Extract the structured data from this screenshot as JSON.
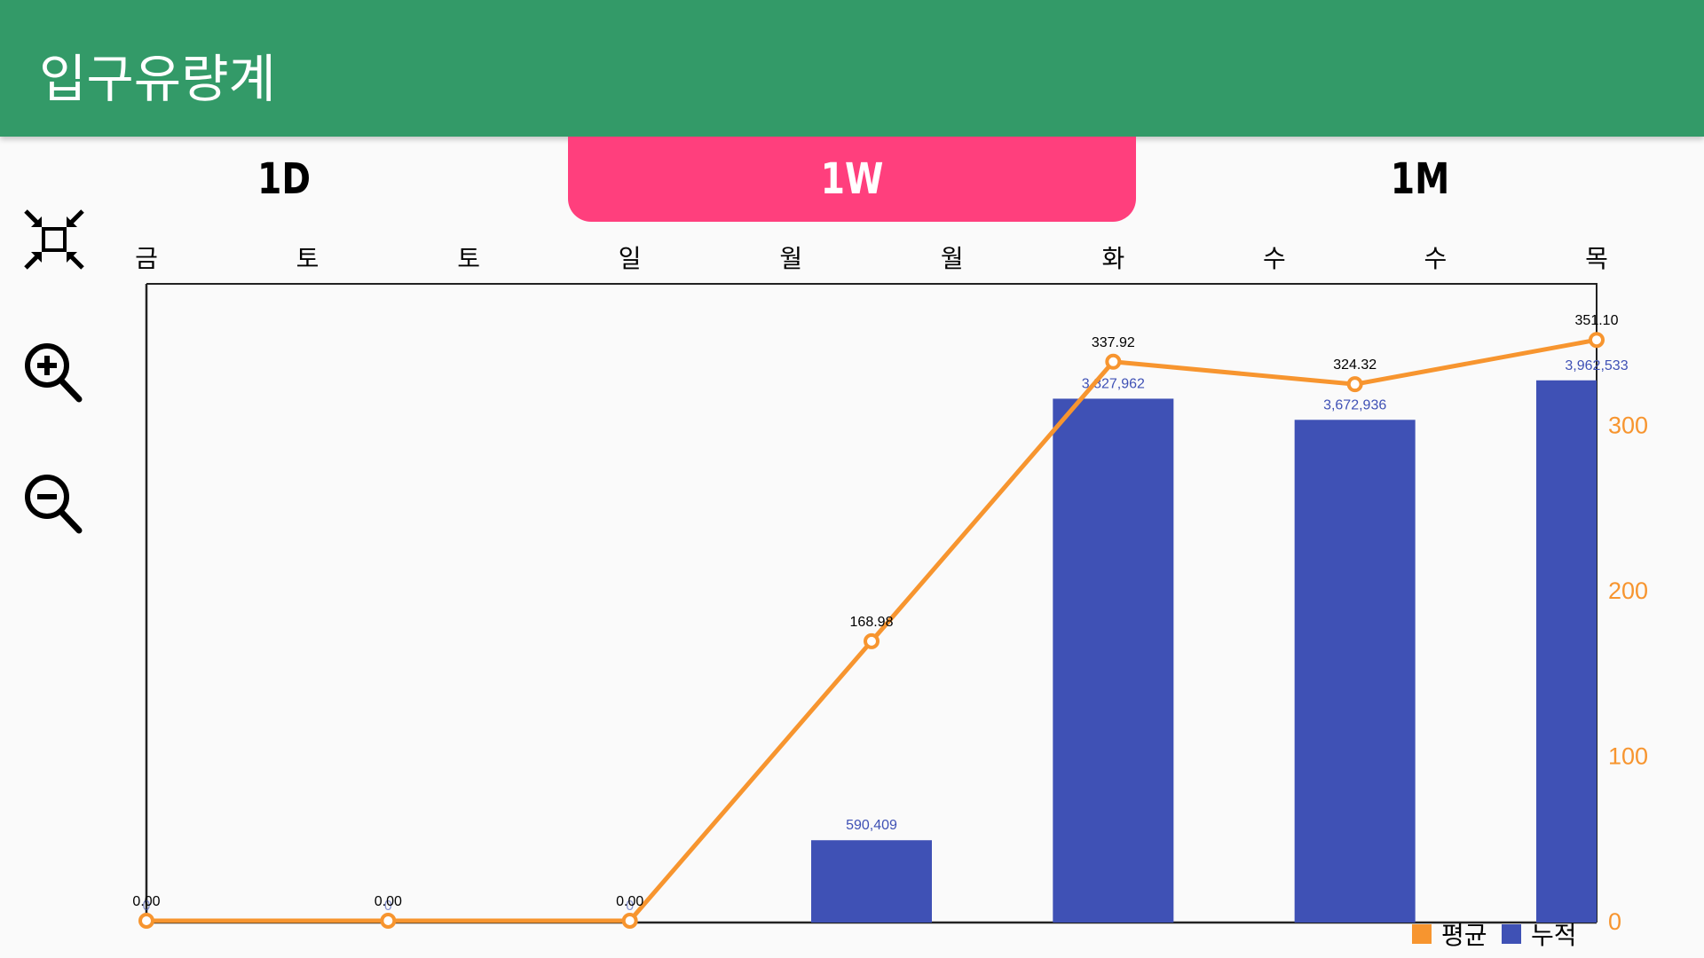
{
  "app": {
    "title": "입구유량계"
  },
  "tabs": [
    {
      "label": "1D",
      "selected": false
    },
    {
      "label": "1W",
      "selected": true
    },
    {
      "label": "1M",
      "selected": false
    }
  ],
  "colors": {
    "header": "#339a68",
    "tab_active": "#ff3f7d",
    "line": "#f7952f",
    "bar": "#3f51b5",
    "axis_right": "#f7952f"
  },
  "side_buttons": [
    "fit-screen-icon",
    "zoom-in-icon",
    "zoom-out-icon"
  ],
  "chart_data": {
    "type": "bar+line",
    "x_labels": [
      "금",
      "토",
      "토",
      "일",
      "월",
      "월",
      "화",
      "수",
      "수",
      "목"
    ],
    "series": [
      {
        "name": "평균",
        "type": "line",
        "x": [
          0,
          1.5,
          3,
          4.5,
          6,
          7.5,
          9
        ],
        "values": [
          0.0,
          0.0,
          0.0,
          168.98,
          337.92,
          324.32,
          351.1
        ],
        "labels": [
          "0.00",
          "0.00",
          "0.00",
          "168.98",
          "337.92",
          "324.32",
          "351.10"
        ]
      },
      {
        "name": "누적",
        "type": "bar",
        "x": [
          0,
          1.5,
          3,
          4.5,
          6,
          7.5,
          9
        ],
        "values": [
          0,
          0,
          0,
          590409,
          3827962,
          3672936,
          3962533
        ],
        "labels": [
          "0",
          "0",
          "0",
          "590,409",
          "3,827,962",
          "3,672,936",
          "3,962,533"
        ]
      }
    ],
    "y_right": {
      "ticks": [
        0,
        100,
        200,
        300
      ],
      "range": [
        0,
        385
      ]
    },
    "bar_axis_range": [
      0,
      4670000
    ],
    "x_range": [
      0,
      9
    ],
    "legend": {
      "position": "bottom-right",
      "items": [
        "평균",
        "누적"
      ]
    },
    "grid": false
  }
}
